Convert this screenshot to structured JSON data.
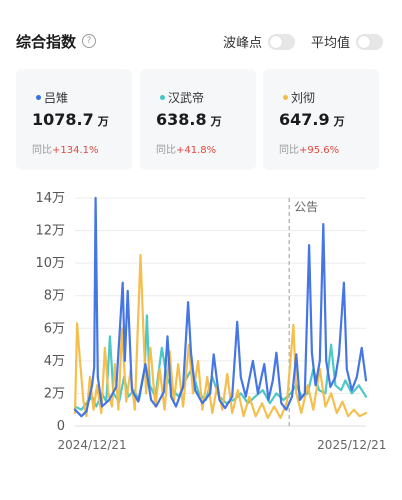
{
  "header": {
    "title": "综合指数",
    "help_icon": "question-circle-icon",
    "toggles": [
      {
        "label": "波峰点",
        "on": false
      },
      {
        "label": "平均值",
        "on": false
      }
    ]
  },
  "cards": [
    {
      "name": "吕雉",
      "value": "1078.7",
      "unit": "万",
      "change_label": "同比",
      "change": "+134.1%",
      "color": "#3b6fe3"
    },
    {
      "name": "汉武帝",
      "value": "638.8",
      "unit": "万",
      "change_label": "同比",
      "change": "+41.8%",
      "color": "#45c4c4"
    },
    {
      "name": "刘彻",
      "value": "647.9",
      "unit": "万",
      "change_label": "同比",
      "change": "+95.6%",
      "color": "#f3bc44"
    }
  ],
  "chart_data": {
    "type": "line",
    "x_range": [
      "2024-11-27",
      "2026-01-10"
    ],
    "x_tick_labels": [
      {
        "label": "2024/12/21",
        "date": "2024-12-21"
      },
      {
        "label": "2025/12/21",
        "date": "2025-12-21"
      }
    ],
    "y_tick_labels": [
      "0",
      "2万",
      "4万",
      "6万",
      "8万",
      "10万",
      "12万",
      "14万"
    ],
    "ylim": [
      0,
      140000
    ],
    "grid": true,
    "annotation": {
      "label": "公告",
      "date": "2025-09-24"
    },
    "series": [
      {
        "name": "吕雉",
        "color": "#3b6fe3",
        "points": [
          [
            "2024-11-27",
            10000
          ],
          [
            "2024-12-06",
            6000
          ],
          [
            "2024-12-13",
            9000
          ],
          [
            "2024-12-21",
            25000
          ],
          [
            "2024-12-24",
            36000
          ],
          [
            "2024-12-26",
            140000
          ],
          [
            "2024-12-29",
            30000
          ],
          [
            "2025-01-04",
            12000
          ],
          [
            "2025-01-14",
            16000
          ],
          [
            "2025-01-24",
            24000
          ],
          [
            "2025-02-02",
            88000
          ],
          [
            "2025-02-05",
            40000
          ],
          [
            "2025-02-09",
            83000
          ],
          [
            "2025-02-15",
            22000
          ],
          [
            "2025-02-24",
            15000
          ],
          [
            "2025-03-06",
            38000
          ],
          [
            "2025-03-14",
            16000
          ],
          [
            "2025-03-21",
            12000
          ],
          [
            "2025-04-01",
            21000
          ],
          [
            "2025-04-06",
            55000
          ],
          [
            "2025-04-11",
            18000
          ],
          [
            "2025-04-18",
            12000
          ],
          [
            "2025-04-28",
            24000
          ],
          [
            "2025-05-05",
            76000
          ],
          [
            "2025-05-09",
            45000
          ],
          [
            "2025-05-15",
            22000
          ],
          [
            "2025-05-25",
            14000
          ],
          [
            "2025-06-05",
            20000
          ],
          [
            "2025-06-10",
            44000
          ],
          [
            "2025-06-18",
            16000
          ],
          [
            "2025-06-26",
            11000
          ],
          [
            "2025-07-06",
            18000
          ],
          [
            "2025-07-13",
            64000
          ],
          [
            "2025-07-18",
            30000
          ],
          [
            "2025-07-25",
            18000
          ],
          [
            "2025-08-04",
            40000
          ],
          [
            "2025-08-11",
            20000
          ],
          [
            "2025-08-20",
            38000
          ],
          [
            "2025-08-26",
            16000
          ],
          [
            "2025-09-01",
            28000
          ],
          [
            "2025-09-06",
            45000
          ],
          [
            "2025-09-13",
            14000
          ],
          [
            "2025-09-20",
            10000
          ],
          [
            "2025-09-28",
            18000
          ],
          [
            "2025-10-04",
            44000
          ],
          [
            "2025-10-09",
            16000
          ],
          [
            "2025-10-16",
            20000
          ],
          [
            "2025-10-22",
            111000
          ],
          [
            "2025-10-26",
            45000
          ],
          [
            "2025-10-31",
            25000
          ],
          [
            "2025-11-06",
            40000
          ],
          [
            "2025-11-11",
            124000
          ],
          [
            "2025-11-15",
            40000
          ],
          [
            "2025-11-21",
            24000
          ],
          [
            "2025-11-28",
            30000
          ],
          [
            "2025-12-03",
            44000
          ],
          [
            "2025-12-10",
            88000
          ],
          [
            "2025-12-14",
            35000
          ],
          [
            "2025-12-21",
            22000
          ],
          [
            "2025-12-28",
            30000
          ],
          [
            "2026-01-04",
            48000
          ],
          [
            "2026-01-10",
            28000
          ]
        ]
      },
      {
        "name": "汉武帝",
        "color": "#45c4c4",
        "points": [
          [
            "2024-11-27",
            12000
          ],
          [
            "2024-12-06",
            10000
          ],
          [
            "2024-12-13",
            14000
          ],
          [
            "2024-12-21",
            18000
          ],
          [
            "2024-12-27",
            12000
          ],
          [
            "2025-01-04",
            20000
          ],
          [
            "2025-01-10",
            15000
          ],
          [
            "2025-01-15",
            55000
          ],
          [
            "2025-01-20",
            20000
          ],
          [
            "2025-01-28",
            15000
          ],
          [
            "2025-02-04",
            30000
          ],
          [
            "2025-02-10",
            18000
          ],
          [
            "2025-02-18",
            22000
          ],
          [
            "2025-02-25",
            16000
          ],
          [
            "2025-03-05",
            35000
          ],
          [
            "2025-03-08",
            68000
          ],
          [
            "2025-03-12",
            25000
          ],
          [
            "2025-03-20",
            18000
          ],
          [
            "2025-03-29",
            48000
          ],
          [
            "2025-04-05",
            30000
          ],
          [
            "2025-04-13",
            22000
          ],
          [
            "2025-04-22",
            18000
          ],
          [
            "2025-05-01",
            28000
          ],
          [
            "2025-05-10",
            35000
          ],
          [
            "2025-05-20",
            20000
          ],
          [
            "2025-05-30",
            16000
          ],
          [
            "2025-06-08",
            30000
          ],
          [
            "2025-06-18",
            18000
          ],
          [
            "2025-06-28",
            14000
          ],
          [
            "2025-07-08",
            16000
          ],
          [
            "2025-07-18",
            20000
          ],
          [
            "2025-07-28",
            14000
          ],
          [
            "2025-08-07",
            18000
          ],
          [
            "2025-08-18",
            22000
          ],
          [
            "2025-08-28",
            14000
          ],
          [
            "2025-09-06",
            20000
          ],
          [
            "2025-09-16",
            16000
          ],
          [
            "2025-09-26",
            20000
          ],
          [
            "2025-10-04",
            25000
          ],
          [
            "2025-10-12",
            18000
          ],
          [
            "2025-10-20",
            20000
          ],
          [
            "2025-10-28",
            35000
          ],
          [
            "2025-11-05",
            22000
          ],
          [
            "2025-11-14",
            20000
          ],
          [
            "2025-11-22",
            50000
          ],
          [
            "2025-11-28",
            25000
          ],
          [
            "2025-12-06",
            22000
          ],
          [
            "2025-12-12",
            28000
          ],
          [
            "2025-12-21",
            20000
          ],
          [
            "2025-12-31",
            25000
          ],
          [
            "2026-01-10",
            18000
          ]
        ]
      },
      {
        "name": "刘彻",
        "color": "#f3bc44",
        "points": [
          [
            "2024-11-27",
            8000
          ],
          [
            "2024-11-30",
            63000
          ],
          [
            "2024-12-04",
            40000
          ],
          [
            "2024-12-09",
            15000
          ],
          [
            "2024-12-13",
            6000
          ],
          [
            "2024-12-18",
            30000
          ],
          [
            "2024-12-23",
            10000
          ],
          [
            "2024-12-28",
            25000
          ],
          [
            "2025-01-03",
            8000
          ],
          [
            "2025-01-08",
            48000
          ],
          [
            "2025-01-13",
            20000
          ],
          [
            "2025-01-18",
            12000
          ],
          [
            "2025-01-22",
            38000
          ],
          [
            "2025-01-27",
            10000
          ],
          [
            "2025-02-01",
            60000
          ],
          [
            "2025-02-07",
            15000
          ],
          [
            "2025-02-13",
            34000
          ],
          [
            "2025-02-19",
            10000
          ],
          [
            "2025-02-27",
            105000
          ],
          [
            "2025-03-03",
            60000
          ],
          [
            "2025-03-07",
            20000
          ],
          [
            "2025-03-13",
            48000
          ],
          [
            "2025-03-20",
            12000
          ],
          [
            "2025-03-26",
            35000
          ],
          [
            "2025-04-02",
            10000
          ],
          [
            "2025-04-09",
            46000
          ],
          [
            "2025-04-15",
            15000
          ],
          [
            "2025-04-21",
            38000
          ],
          [
            "2025-04-28",
            12000
          ],
          [
            "2025-05-06",
            50000
          ],
          [
            "2025-05-12",
            20000
          ],
          [
            "2025-05-19",
            40000
          ],
          [
            "2025-05-25",
            10000
          ],
          [
            "2025-06-01",
            30000
          ],
          [
            "2025-06-08",
            8000
          ],
          [
            "2025-06-15",
            25000
          ],
          [
            "2025-06-22",
            10000
          ],
          [
            "2025-06-29",
            32000
          ],
          [
            "2025-07-06",
            8000
          ],
          [
            "2025-07-14",
            22000
          ],
          [
            "2025-07-22",
            6000
          ],
          [
            "2025-07-30",
            18000
          ],
          [
            "2025-08-08",
            6000
          ],
          [
            "2025-08-17",
            14000
          ],
          [
            "2025-08-25",
            5000
          ],
          [
            "2025-09-03",
            12000
          ],
          [
            "2025-09-12",
            5000
          ],
          [
            "2025-09-21",
            15000
          ],
          [
            "2025-09-30",
            62000
          ],
          [
            "2025-10-04",
            20000
          ],
          [
            "2025-10-11",
            8000
          ],
          [
            "2025-10-20",
            25000
          ],
          [
            "2025-10-28",
            10000
          ],
          [
            "2025-11-06",
            35000
          ],
          [
            "2025-11-14",
            12000
          ],
          [
            "2025-11-22",
            20000
          ],
          [
            "2025-11-30",
            8000
          ],
          [
            "2025-12-08",
            15000
          ],
          [
            "2025-12-16",
            6000
          ],
          [
            "2025-12-24",
            10000
          ],
          [
            "2026-01-01",
            6000
          ],
          [
            "2026-01-10",
            8000
          ]
        ]
      }
    ]
  }
}
